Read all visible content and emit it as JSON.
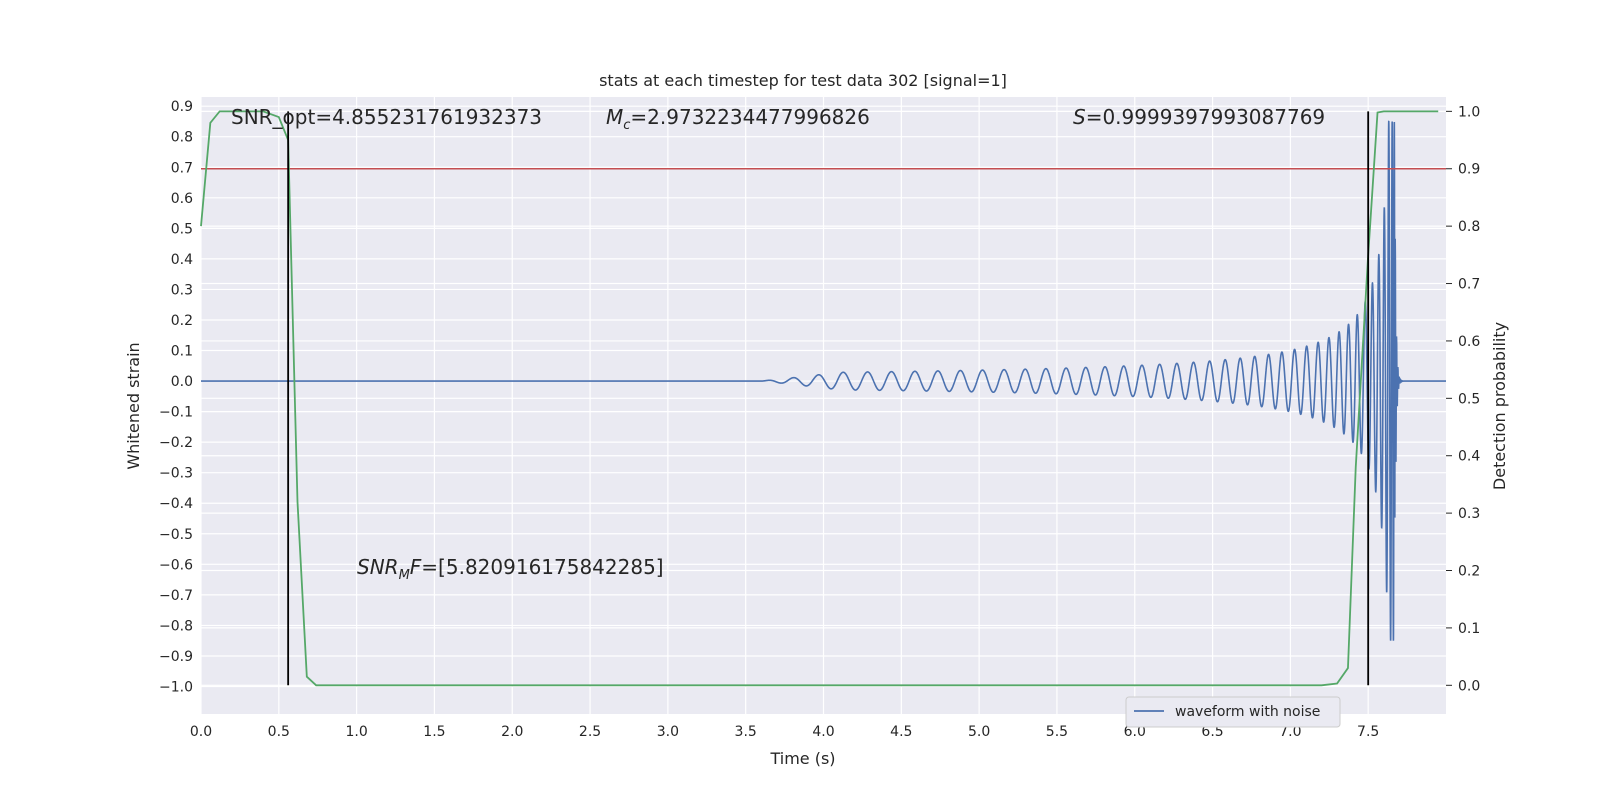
{
  "chart_data": {
    "type": "line",
    "title": "stats at each timestep for test data 302 [signal=1]",
    "xlabel": "Time (s)",
    "ylabel_left": "Whitened strain",
    "ylabel_right": "Detection probability",
    "xlim": [
      0.0,
      8.0
    ],
    "ylim_left": [
      -1.09,
      0.93
    ],
    "ylim_right": [
      -0.05,
      1.025
    ],
    "x_ticks": [
      "0.0",
      "0.5",
      "1.0",
      "1.5",
      "2.0",
      "2.5",
      "3.0",
      "3.5",
      "4.0",
      "4.5",
      "5.0",
      "5.5",
      "6.0",
      "6.5",
      "7.0",
      "7.5"
    ],
    "y_left_ticks": [
      "0.9",
      "0.8",
      "0.7",
      "0.6",
      "0.5",
      "0.4",
      "0.3",
      "0.2",
      "0.1",
      "0.0",
      "−0.1",
      "−0.2",
      "−0.3",
      "−0.4",
      "−0.5",
      "−0.6",
      "−0.7",
      "−0.8",
      "−0.9",
      "−1.0"
    ],
    "y_right_ticks": [
      "1.0",
      "0.9",
      "0.8",
      "0.7",
      "0.6",
      "0.5",
      "0.4",
      "0.3",
      "0.2",
      "0.1",
      "0.0"
    ],
    "grid": true,
    "legend": {
      "placement": "lower-right",
      "entries": [
        "waveform with noise"
      ]
    },
    "annotations": {
      "snr_opt": "SNR_opt=4.855231761932373",
      "mc_symbol": "M",
      "mc_sub": "c",
      "mc_value": "=2.9732234477996826",
      "s_symbol": "S",
      "s_value": "=0.9999397993087769",
      "snr_mf_symbol": "SNR",
      "snr_mf_sub": "M",
      "snr_mf_suffix": "F",
      "snr_mf_value": "=[5.820916175842285]"
    },
    "threshold_line": {
      "value": 0.9,
      "axis": "right"
    },
    "vertical_lines": [
      0.56,
      7.5
    ],
    "probability_series": {
      "x": [
        0.0,
        0.06,
        0.12,
        0.2,
        0.3,
        0.4,
        0.5,
        0.56,
        0.62,
        0.68,
        0.74,
        0.8,
        1.0,
        2.0,
        3.0,
        4.0,
        5.0,
        6.0,
        7.0,
        7.2,
        7.3,
        7.37,
        7.42,
        7.5,
        7.56,
        7.6,
        7.7,
        7.95
      ],
      "y": [
        0.8,
        0.98,
        1.0,
        1.0,
        1.0,
        1.0,
        0.99,
        0.95,
        0.32,
        0.015,
        0.0,
        0.0,
        0.0,
        0.0,
        0.0,
        0.0,
        0.0,
        0.0,
        0.0,
        0.0,
        0.003,
        0.03,
        0.38,
        0.75,
        0.998,
        1.0,
        1.0,
        1.0
      ]
    },
    "waveform": {
      "name": "waveform with noise",
      "onset_time": 3.6,
      "merger_time": 7.67,
      "end_time": 8.0,
      "peak_amplitude": 0.85
    }
  }
}
